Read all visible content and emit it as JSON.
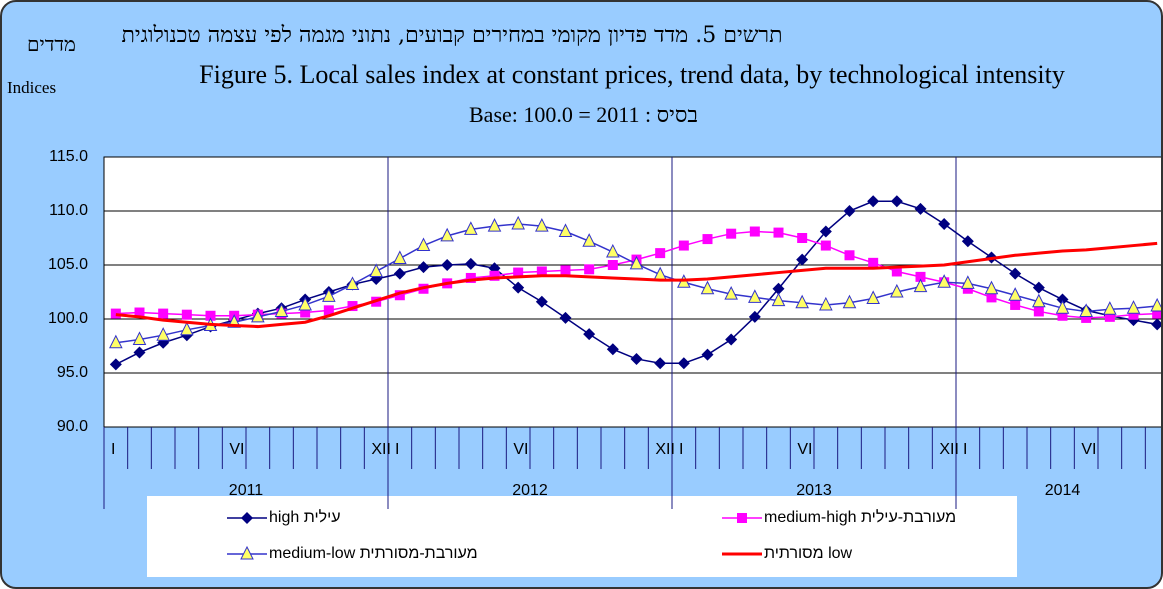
{
  "chart_data": {
    "type": "line",
    "title": "תרשים 5. מדד פדיון מקומי במחירים קבועים, נתוני מגמה לפי עצמה טכנולוגית",
    "subtitle": "Figure 5. Local sales index at constant prices, trend data, by  technological intensity",
    "base_note": "Base: 100.0 = 2011 : בסיס",
    "y_label_he": "מדדים",
    "y_label": "Indices",
    "categories": [
      "I",
      null,
      null,
      null,
      null,
      "VI",
      null,
      null,
      null,
      null,
      null,
      "XII",
      "I",
      null,
      null,
      null,
      null,
      "VI",
      null,
      null,
      null,
      null,
      null,
      "XII",
      "I",
      null,
      null,
      null,
      null,
      "VI",
      null,
      null,
      null,
      null,
      null,
      "XII",
      "I",
      null,
      null,
      null,
      null,
      "VI",
      null,
      null,
      null
    ],
    "years": [
      "2011",
      "2012",
      "2013",
      "2014"
    ],
    "ylim": [
      90,
      115
    ],
    "yticks": [
      {
        "value": 90,
        "label": "90.0"
      },
      {
        "value": 95,
        "label": "95.0"
      },
      {
        "value": 100,
        "label": "100.0"
      },
      {
        "value": 105,
        "label": "105.0"
      },
      {
        "value": 110,
        "label": "110.0"
      },
      {
        "value": 115,
        "label": "115.0"
      }
    ],
    "grid": true,
    "series": [
      {
        "name": "high עילית",
        "color": "#000080",
        "marker": "diamond",
        "values": [
          95.8,
          96.9,
          97.8,
          98.5,
          99.3,
          99.9,
          100.5,
          101.0,
          101.8,
          102.5,
          103.2,
          103.7,
          104.2,
          104.8,
          105.0,
          105.1,
          104.7,
          102.9,
          101.6,
          100.1,
          98.6,
          97.2,
          96.3,
          95.9,
          95.9,
          96.7,
          98.1,
          100.2,
          102.8,
          105.5,
          108.1,
          110.0,
          110.9,
          110.9,
          110.2,
          108.8,
          107.2,
          105.7,
          104.2,
          102.9,
          101.8,
          100.8,
          100.3,
          99.9,
          99.5
        ]
      },
      {
        "name": "medium-high מעורבת-עילית",
        "color": "#ff00ff",
        "marker": "square",
        "values": [
          100.5,
          100.6,
          100.5,
          100.4,
          100.3,
          100.3,
          100.4,
          100.5,
          100.6,
          100.8,
          101.2,
          101.6,
          102.2,
          102.8,
          103.3,
          103.8,
          104.0,
          104.3,
          104.4,
          104.5,
          104.6,
          105.0,
          105.5,
          106.1,
          106.8,
          107.4,
          107.9,
          108.1,
          108.0,
          107.5,
          106.8,
          105.9,
          105.2,
          104.4,
          103.9,
          103.4,
          102.8,
          102.0,
          101.3,
          100.7,
          100.3,
          100.1,
          100.2,
          100.4,
          100.5
        ]
      },
      {
        "name": "medium-low מעורבת-מסורתית",
        "color": "#3333cc",
        "marker": "triangle",
        "values": [
          97.8,
          98.1,
          98.5,
          99.0,
          99.4,
          99.7,
          100.2,
          100.7,
          101.3,
          102.1,
          103.2,
          104.4,
          105.6,
          106.8,
          107.7,
          108.3,
          108.6,
          108.8,
          108.6,
          108.1,
          107.2,
          106.2,
          105.1,
          104.1,
          103.4,
          102.8,
          102.3,
          102.0,
          101.7,
          101.5,
          101.3,
          101.5,
          101.9,
          102.5,
          103.0,
          103.4,
          103.3,
          102.8,
          102.2,
          101.6,
          101.0,
          100.7,
          100.9,
          101.0,
          101.2
        ]
      },
      {
        "name": "מסורתית low",
        "color": "#ff0000",
        "marker": "none",
        "values": [
          100.4,
          100.2,
          99.9,
          99.7,
          99.5,
          99.4,
          99.3,
          99.5,
          99.7,
          100.3,
          101.0,
          101.7,
          102.4,
          102.9,
          103.3,
          103.6,
          103.8,
          103.9,
          104.0,
          104.0,
          103.9,
          103.8,
          103.7,
          103.6,
          103.6,
          103.7,
          103.9,
          104.1,
          104.3,
          104.5,
          104.7,
          104.7,
          104.7,
          104.8,
          104.9,
          105.0,
          105.3,
          105.6,
          105.9,
          106.1,
          106.3,
          106.4,
          106.6,
          106.8,
          107.0
        ]
      }
    ]
  }
}
